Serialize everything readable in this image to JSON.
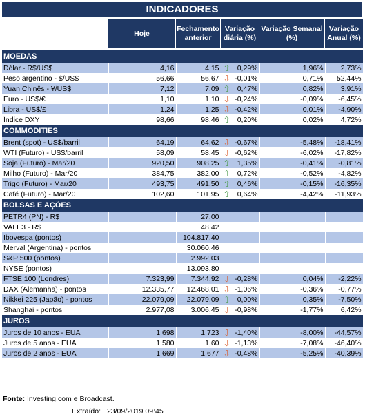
{
  "title": "INDICADORES",
  "headers": {
    "hoje": "Hoje",
    "fechamento": "Fechamento anterior",
    "var_diaria": "Variação diária (%)",
    "var_semanal": "Variação Semanal (%)",
    "var_anual": "Variação Anual (%)"
  },
  "sections": [
    {
      "name": "MOEDAS",
      "rows": [
        {
          "name": "Dólar - R$/US$",
          "hoje": "4,16",
          "fech": "4,15",
          "dir": "up",
          "dia": "0,29%",
          "sem": "1,96%",
          "ano": "2,73%"
        },
        {
          "name": "Peso argentino - $/US$",
          "hoje": "56,66",
          "fech": "56,67",
          "dir": "down",
          "dia": "-0,01%",
          "sem": "0,71%",
          "ano": "52,44%"
        },
        {
          "name": "Yuan Chinês - ¥/US$",
          "hoje": "7,12",
          "fech": "7,09",
          "dir": "up",
          "dia": "0,47%",
          "sem": "0,82%",
          "ano": "3,91%"
        },
        {
          "name": "Euro - US$/€",
          "hoje": "1,10",
          "fech": "1,10",
          "dir": "down",
          "dia": "-0,24%",
          "sem": "-0,09%",
          "ano": "-6,45%"
        },
        {
          "name": "Libra - US$/£",
          "hoje": "1,24",
          "fech": "1,25",
          "dir": "down",
          "dia": "-0,42%",
          "sem": "0,01%",
          "ano": "-4,90%"
        },
        {
          "name": "Índice DXY",
          "hoje": "98,66",
          "fech": "98,46",
          "dir": "up",
          "dia": "0,20%",
          "sem": "0,02%",
          "ano": "4,72%"
        }
      ]
    },
    {
      "name": "COMMODITIES",
      "rows": [
        {
          "name": "Brent (spot) - US$/barril",
          "hoje": "64,19",
          "fech": "64,62",
          "dir": "down",
          "dia": "-0,67%",
          "sem": "-5,48%",
          "ano": "-18,41%"
        },
        {
          "name": "WTI (Futuro) - US$/barril",
          "hoje": "58,09",
          "fech": "58,45",
          "dir": "down",
          "dia": "-0,62%",
          "sem": "-6,02%",
          "ano": "-17,82%"
        },
        {
          "name": "Soja (Futuro) - Mar/20",
          "hoje": "920,50",
          "fech": "908,25",
          "dir": "up",
          "dia": "1,35%",
          "sem": "-0,41%",
          "ano": "-0,81%"
        },
        {
          "name": "Milho (Futuro) - Mar/20",
          "hoje": "384,75",
          "fech": "382,00",
          "dir": "up",
          "dia": "0,72%",
          "sem": "-0,52%",
          "ano": "-4,82%"
        },
        {
          "name": "Trigo (Futuro) - Mar/20",
          "hoje": "493,75",
          "fech": "491,50",
          "dir": "up",
          "dia": "0,46%",
          "sem": "-0,15%",
          "ano": "-16,35%"
        },
        {
          "name": "Café (Futuro) - Mar/20",
          "hoje": "102,60",
          "fech": "101,95",
          "dir": "up",
          "dia": "0,64%",
          "sem": "-4,42%",
          "ano": "-11,93%"
        }
      ]
    },
    {
      "name": "BOLSAS E AÇÕES",
      "rows": [
        {
          "name": "PETR4 (PN) - R$",
          "hoje": "",
          "fech": "27,00",
          "dir": "",
          "dia": "",
          "sem": "",
          "ano": ""
        },
        {
          "name": "VALE3 - R$",
          "hoje": "",
          "fech": "48,42",
          "dir": "",
          "dia": "",
          "sem": "",
          "ano": ""
        },
        {
          "name": "Ibovespa (pontos)",
          "hoje": "",
          "fech": "104.817,40",
          "dir": "",
          "dia": "",
          "sem": "",
          "ano": ""
        },
        {
          "name": "Merval (Argentina) - pontos",
          "hoje": "",
          "fech": "30.060,46",
          "dir": "",
          "dia": "",
          "sem": "",
          "ano": ""
        },
        {
          "name": "S&P 500 (pontos)",
          "hoje": "",
          "fech": "2.992,03",
          "dir": "",
          "dia": "",
          "sem": "",
          "ano": ""
        },
        {
          "name": "NYSE (pontos)",
          "hoje": "",
          "fech": "13.093,80",
          "dir": "",
          "dia": "",
          "sem": "",
          "ano": ""
        },
        {
          "name": "FTSE 100 (Londres)",
          "hoje": "7.323,99",
          "fech": "7.344,92",
          "dir": "down",
          "dia": "-0,28%",
          "sem": "0,04%",
          "ano": "-2,22%"
        },
        {
          "name": "DAX (Alemanha) - pontos",
          "hoje": "12.335,77",
          "fech": "12.468,01",
          "dir": "down",
          "dia": "-1,06%",
          "sem": "-0,36%",
          "ano": "-0,77%"
        },
        {
          "name": "Nikkei 225 (Japão) - pontos",
          "hoje": "22.079,09",
          "fech": "22.079,09",
          "dir": "up",
          "dia": "0,00%",
          "sem": "0,35%",
          "ano": "-7,50%"
        },
        {
          "name": "Shanghai - pontos",
          "hoje": "2.977,08",
          "fech": "3.006,45",
          "dir": "down",
          "dia": "-0,98%",
          "sem": "-1,77%",
          "ano": "6,42%"
        }
      ]
    },
    {
      "name": "JUROS",
      "rows": [
        {
          "name": "Juros de 10 anos - EUA",
          "hoje": "1,698",
          "fech": "1,723",
          "dir": "down",
          "dia": "-1,40%",
          "sem": "-8,00%",
          "ano": "-44,57%"
        },
        {
          "name": "Juros de 5 anos - EUA",
          "hoje": "1,580",
          "fech": "1,60",
          "dir": "down",
          "dia": "-1,13%",
          "sem": "-7,08%",
          "ano": "-46,40%"
        },
        {
          "name": "Juros de 2 anos - EUA",
          "hoje": "1,669",
          "fech": "1,677",
          "dir": "down",
          "dia": "-0,48%",
          "sem": "-5,25%",
          "ano": "-40,39%"
        }
      ]
    }
  ],
  "footer": {
    "fonte_label": "Fonte:",
    "fonte_text": "Investing.com e Broadcast.",
    "extraido_label": "Extraído:",
    "extraido_value": "23/09/2019 09:45"
  },
  "colors": {
    "header_bg": "#1f3864",
    "alt_row": "#b4c6e7",
    "arrow_up": "#4a9a4a",
    "arrow_down": "#d9531e"
  }
}
